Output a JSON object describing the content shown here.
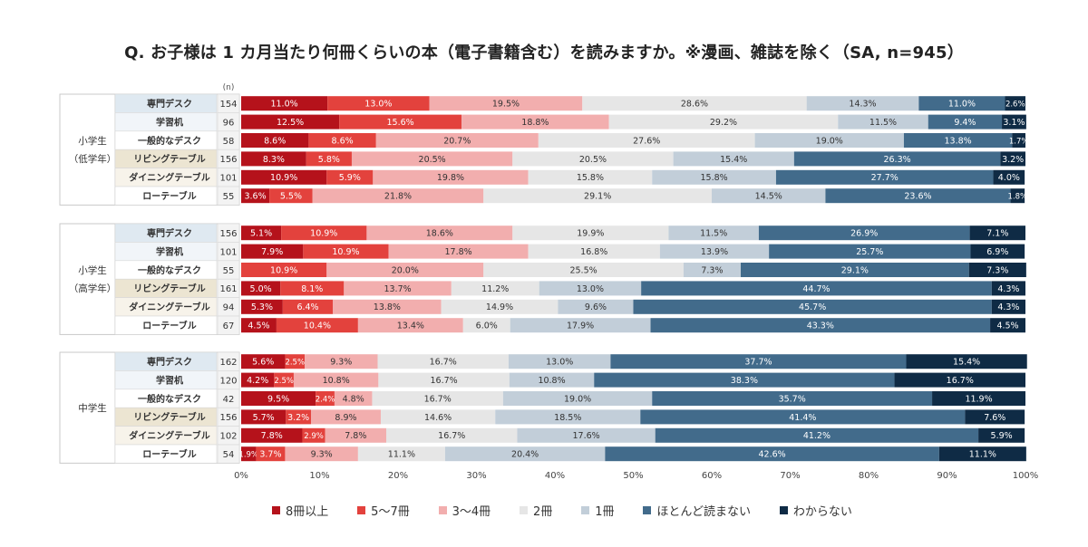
{
  "title": "Q. お子様は 1 カ月当たり何冊くらいの本（電子書籍含む）を読みますか。※漫画、雑誌を除く（SA, n=945）",
  "chart_data": {
    "type": "bar",
    "orientation": "horizontal",
    "stacked": "100%",
    "n_label": "(n)",
    "xlim": [
      0,
      100
    ],
    "x_ticks": [
      "0%",
      "10%",
      "20%",
      "30%",
      "40%",
      "50%",
      "60%",
      "70%",
      "80%",
      "90%",
      "100%"
    ],
    "series_names": [
      "8冊以上",
      "5〜7冊",
      "3〜4冊",
      "2冊",
      "1冊",
      "ほとんど読まない",
      "わからない"
    ],
    "colors": [
      "#b5121b",
      "#e3423d",
      "#f2aeae",
      "#e6e6e6",
      "#c2ced9",
      "#426b8b",
      "#0f2b45"
    ],
    "groups": [
      {
        "label_lines": [
          "小学生",
          "（低学年）"
        ],
        "rows": [
          {
            "label": "専門デスク",
            "n": "154",
            "values": [
              11.0,
              13.0,
              19.5,
              28.6,
              14.3,
              11.0,
              2.6
            ]
          },
          {
            "label": "学習机",
            "n": "96",
            "values": [
              12.5,
              15.6,
              18.8,
              29.2,
              11.5,
              9.4,
              3.1
            ]
          },
          {
            "label": "一般的なデスク",
            "n": "58",
            "values": [
              8.6,
              8.6,
              20.7,
              27.6,
              19.0,
              13.8,
              1.7
            ]
          },
          {
            "label": "リビングテーブル",
            "n": "156",
            "values": [
              8.3,
              5.8,
              20.5,
              20.5,
              15.4,
              26.3,
              3.2
            ]
          },
          {
            "label": "ダイニングテーブル",
            "n": "101",
            "values": [
              10.9,
              5.9,
              19.8,
              15.8,
              15.8,
              27.7,
              4.0
            ]
          },
          {
            "label": "ローテーブル",
            "n": "55",
            "values": [
              3.6,
              5.5,
              21.8,
              29.1,
              14.5,
              23.6,
              1.8
            ]
          }
        ]
      },
      {
        "label_lines": [
          "小学生",
          "（高学年）"
        ],
        "rows": [
          {
            "label": "専門デスク",
            "n": "156",
            "values": [
              5.1,
              10.9,
              18.6,
              19.9,
              11.5,
              26.9,
              7.1
            ]
          },
          {
            "label": "学習机",
            "n": "101",
            "values": [
              7.9,
              10.9,
              17.8,
              16.8,
              13.9,
              25.7,
              6.9
            ]
          },
          {
            "label": "一般的なデスク",
            "n": "55",
            "values": [
              0,
              10.9,
              20.0,
              25.5,
              7.3,
              29.1,
              7.3
            ]
          },
          {
            "label": "リビングテーブル",
            "n": "161",
            "values": [
              5.0,
              8.1,
              13.7,
              11.2,
              13.0,
              44.7,
              4.3
            ]
          },
          {
            "label": "ダイニングテーブル",
            "n": "94",
            "values": [
              5.3,
              6.4,
              13.8,
              14.9,
              9.6,
              45.7,
              4.3
            ]
          },
          {
            "label": "ローテーブル",
            "n": "67",
            "values": [
              4.5,
              10.4,
              13.4,
              6.0,
              17.9,
              43.3,
              4.5
            ]
          }
        ]
      },
      {
        "label_lines": [
          "中学生"
        ],
        "rows": [
          {
            "label": "専門デスク",
            "n": "162",
            "values": [
              5.6,
              2.5,
              9.3,
              16.7,
              13.0,
              37.7,
              15.4
            ]
          },
          {
            "label": "学習机",
            "n": "120",
            "values": [
              4.2,
              2.5,
              10.8,
              16.7,
              10.8,
              38.3,
              16.7
            ]
          },
          {
            "label": "一般的なデスク",
            "n": "42",
            "values": [
              9.5,
              2.4,
              4.8,
              16.7,
              19.0,
              35.7,
              11.9
            ]
          },
          {
            "label": "リビングテーブル",
            "n": "156",
            "values": [
              5.7,
              3.2,
              8.9,
              14.6,
              18.5,
              41.4,
              7.6
            ]
          },
          {
            "label": "ダイニングテーブル",
            "n": "102",
            "values": [
              7.8,
              2.9,
              7.8,
              16.7,
              17.6,
              41.2,
              5.9
            ]
          },
          {
            "label": "ローテーブル",
            "n": "54",
            "values": [
              1.9,
              3.7,
              9.3,
              11.1,
              20.4,
              42.6,
              11.1
            ]
          }
        ]
      }
    ]
  }
}
